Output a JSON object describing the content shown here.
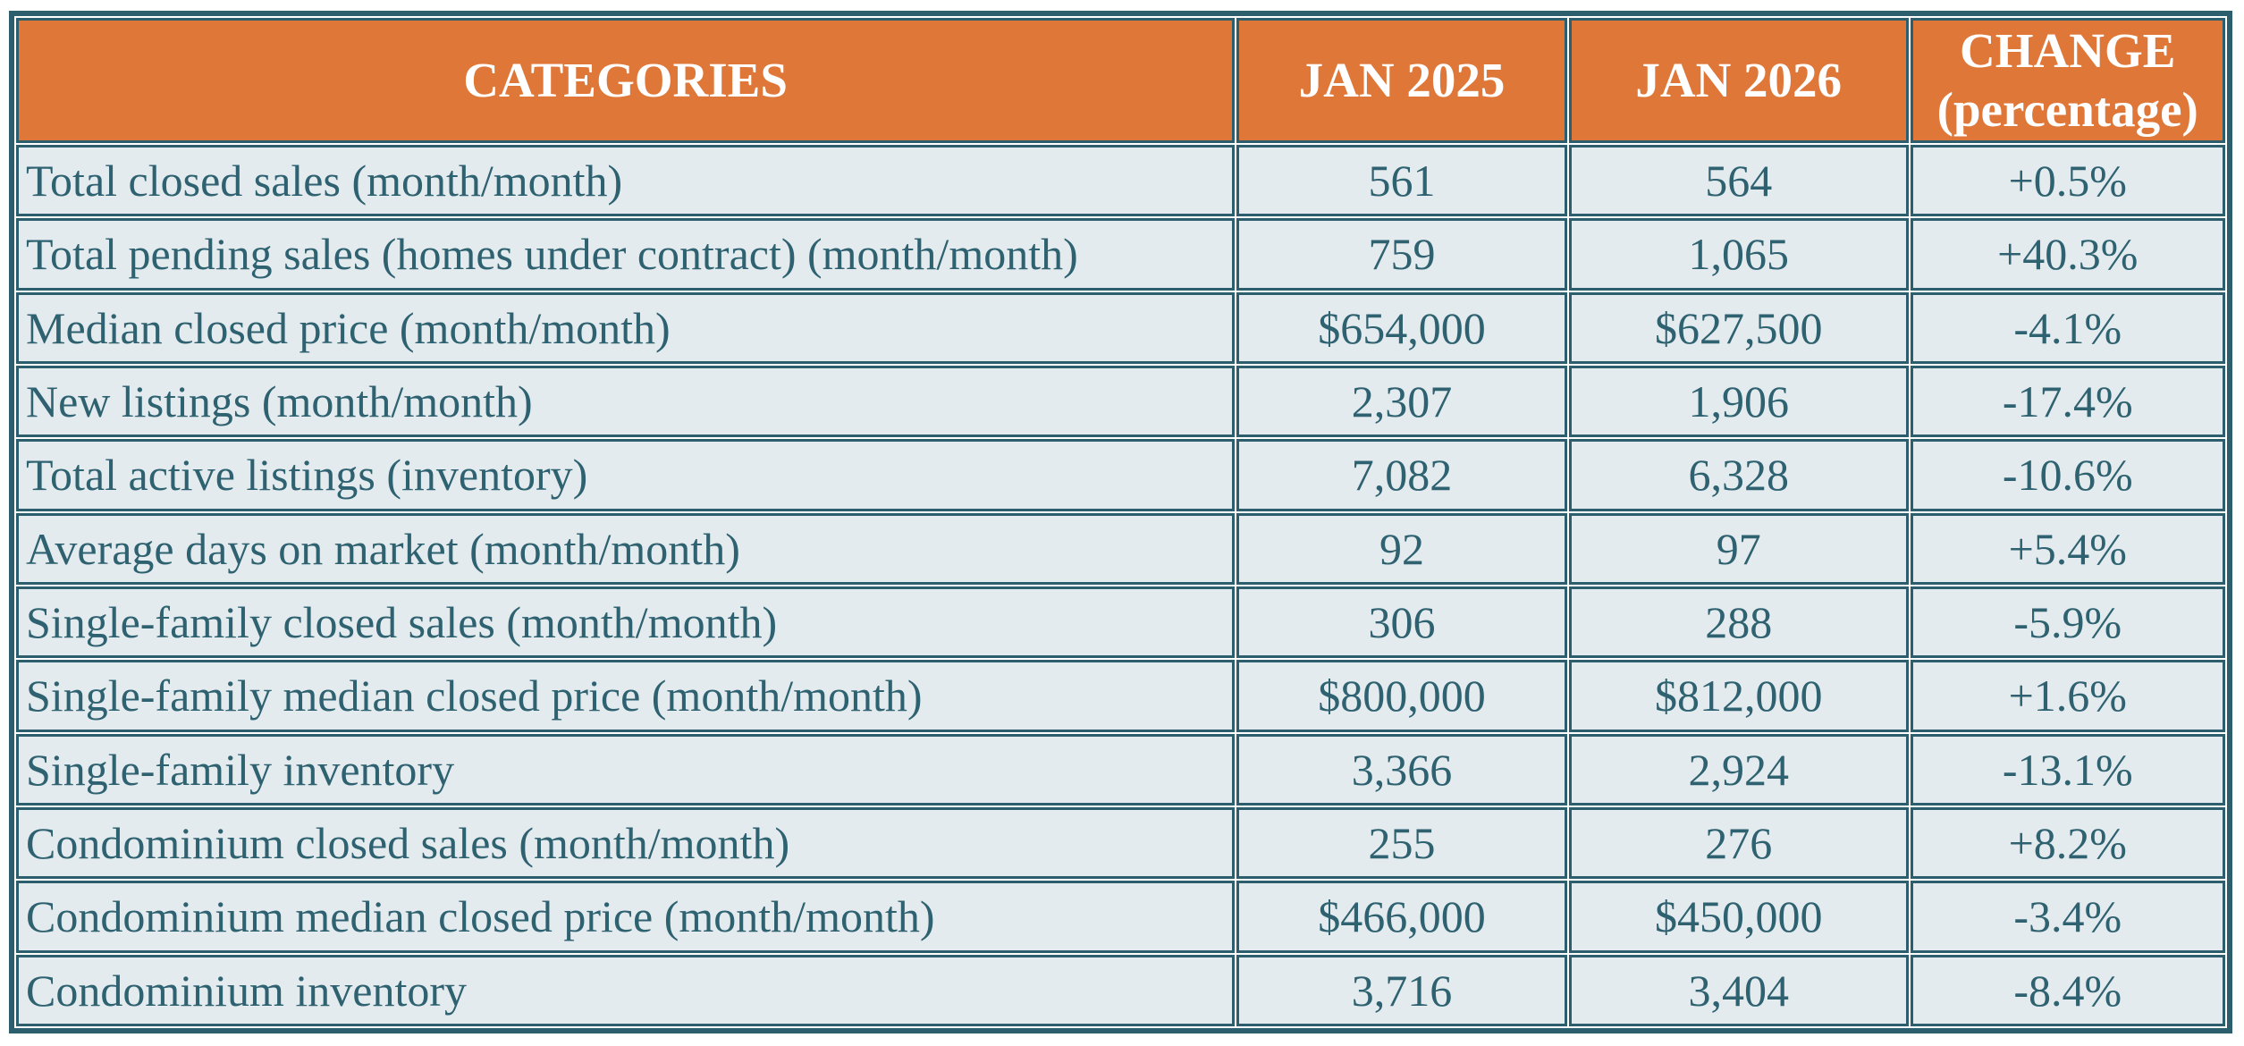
{
  "header": {
    "categories": "CATEGORIES",
    "jan_2025": "JAN 2025",
    "jan_2026": "JAN 2026",
    "change_line_1": "CHANGE",
    "change_line_2": "(percentage)"
  },
  "colors": {
    "header_bg": "#DF7739",
    "header_text": "#FFFFFF",
    "grid_border": "#2D5E6D",
    "row_bg": "#E4EBEE",
    "body_text": "#2F6271",
    "page_bg": "#FFFFFF"
  },
  "chart_data": {
    "type": "table",
    "columns": [
      "CATEGORIES",
      "JAN 2025",
      "JAN 2026",
      "CHANGE (percentage)"
    ],
    "rows": [
      [
        "Total closed sales (month/month)",
        "561",
        "564",
        "+0.5%"
      ],
      [
        "Total pending sales (homes under contract) (month/month)",
        "759",
        "1,065",
        "+40.3%"
      ],
      [
        "Median closed price (month/month)",
        "$654,000",
        "$627,500",
        "-4.1%"
      ],
      [
        "New listings (month/month)",
        "2,307",
        "1,906",
        "-17.4%"
      ],
      [
        "Total active listings (inventory)",
        "7,082",
        "6,328",
        "-10.6%"
      ],
      [
        "Average days on market (month/month)",
        "92",
        "97",
        "+5.4%"
      ],
      [
        "Single-family closed sales (month/month)",
        "306",
        "288",
        "-5.9%"
      ],
      [
        "Single-family median closed price (month/month)",
        "$800,000",
        "$812,000",
        "+1.6%"
      ],
      [
        "Single-family inventory",
        "3,366",
        "2,924",
        "-13.1%"
      ],
      [
        "Condominium closed sales (month/month)",
        "255",
        "276",
        "+8.2%"
      ],
      [
        "Condominium median closed price (month/month)",
        "$466,000",
        "$450,000",
        "-3.4%"
      ],
      [
        "Condominium inventory",
        "3,716",
        "3,404",
        "-8.4%"
      ]
    ]
  }
}
